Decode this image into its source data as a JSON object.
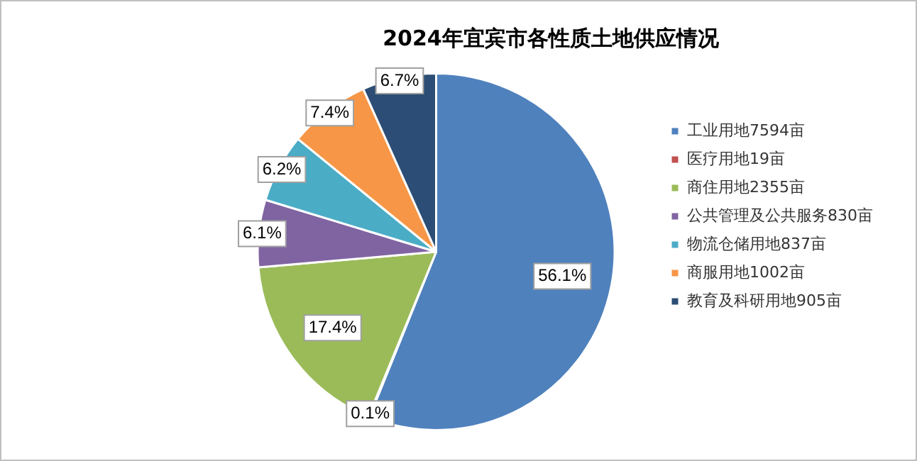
{
  "chart_data": {
    "type": "pie",
    "title": "2024年宜宾市各性质土地供应情况",
    "categories": [
      "工业用地7594亩",
      "医疗用地19亩",
      "商住用地2355亩",
      "公共管理及公共服务830亩",
      "物流仓储用地837亩",
      "商服用地1002亩",
      "教育及科研用地905亩"
    ],
    "values": [
      56.1,
      0.1,
      17.4,
      6.1,
      6.2,
      7.4,
      6.7
    ],
    "colors": [
      "#4f81bd",
      "#c0504d",
      "#9bbb59",
      "#8064a2",
      "#4bacc6",
      "#f79646",
      "#2c4d75"
    ],
    "value_labels": [
      "56.1%",
      "0.1%",
      "17.4%",
      "6.1%",
      "6.2%",
      "7.4%",
      "6.7%"
    ],
    "legend": "right"
  }
}
